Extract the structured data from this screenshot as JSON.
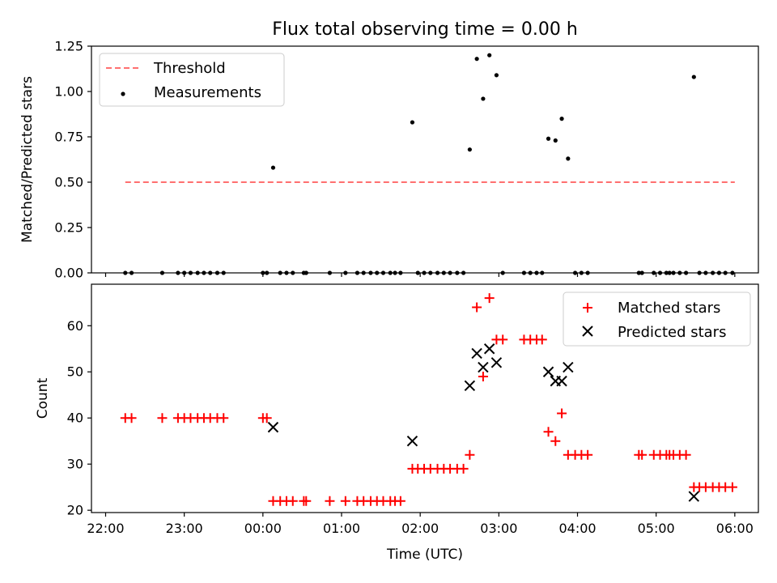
{
  "chart_data": {
    "title": "Flux total observing time = 0.00 h",
    "shared_x": {
      "label": "Time (UTC)",
      "unit": "hours since 22:00",
      "range": [
        -0.18,
        8.3
      ],
      "ticks": [
        0,
        1,
        2,
        3,
        4,
        5,
        6,
        7,
        8
      ],
      "tick_labels": [
        "22:00",
        "23:00",
        "00:00",
        "01:00",
        "02:00",
        "03:00",
        "04:00",
        "05:00",
        "06:00"
      ]
    },
    "panels": [
      {
        "type": "scatter",
        "ylabel": "Matched/Predicted stars",
        "ylim": [
          0,
          1.25
        ],
        "yticks": [
          0.0,
          0.25,
          0.5,
          0.75,
          1.0,
          1.25
        ],
        "ytick_labels": [
          "0.00",
          "0.25",
          "0.50",
          "0.75",
          "1.00",
          "1.25"
        ],
        "legend": {
          "position": "top-left",
          "entries": [
            "Threshold",
            "Measurements"
          ]
        },
        "threshold": {
          "name": "Threshold",
          "y": 0.5,
          "x_range": [
            0.25,
            8.0
          ],
          "color": "#ff7070",
          "style": "dashed"
        },
        "series": [
          {
            "name": "Measurements",
            "color": "#000000",
            "marker": "dot",
            "points": [
              [
                0.25,
                0
              ],
              [
                0.33,
                0
              ],
              [
                0.72,
                0
              ],
              [
                0.92,
                0
              ],
              [
                1.0,
                0
              ],
              [
                1.08,
                0
              ],
              [
                1.17,
                0
              ],
              [
                1.25,
                0
              ],
              [
                1.33,
                0
              ],
              [
                1.42,
                0
              ],
              [
                1.5,
                0
              ],
              [
                2.0,
                0
              ],
              [
                2.05,
                0
              ],
              [
                2.13,
                0.58
              ],
              [
                2.22,
                0
              ],
              [
                2.3,
                0
              ],
              [
                2.38,
                0
              ],
              [
                2.52,
                0
              ],
              [
                2.55,
                0
              ],
              [
                2.85,
                0
              ],
              [
                3.05,
                0
              ],
              [
                3.2,
                0
              ],
              [
                3.28,
                0
              ],
              [
                3.37,
                0
              ],
              [
                3.45,
                0
              ],
              [
                3.53,
                0
              ],
              [
                3.62,
                0
              ],
              [
                3.68,
                0
              ],
              [
                3.75,
                0
              ],
              [
                3.9,
                0.83
              ],
              [
                3.97,
                0
              ],
              [
                4.05,
                0
              ],
              [
                4.13,
                0
              ],
              [
                4.22,
                0
              ],
              [
                4.3,
                0
              ],
              [
                4.38,
                0
              ],
              [
                4.47,
                0
              ],
              [
                4.55,
                0
              ],
              [
                4.63,
                0.68
              ],
              [
                4.72,
                1.18
              ],
              [
                4.8,
                0.96
              ],
              [
                4.88,
                1.2
              ],
              [
                4.97,
                1.09
              ],
              [
                5.05,
                0
              ],
              [
                5.32,
                0
              ],
              [
                5.4,
                0
              ],
              [
                5.48,
                0
              ],
              [
                5.55,
                0
              ],
              [
                5.63,
                0.74
              ],
              [
                5.72,
                0.73
              ],
              [
                5.8,
                0.85
              ],
              [
                5.88,
                0.63
              ],
              [
                5.97,
                0
              ],
              [
                6.05,
                0
              ],
              [
                6.13,
                0
              ],
              [
                6.78,
                0
              ],
              [
                6.82,
                0
              ],
              [
                6.97,
                0
              ],
              [
                7.05,
                0
              ],
              [
                7.13,
                0
              ],
              [
                7.17,
                0
              ],
              [
                7.22,
                0
              ],
              [
                7.3,
                0
              ],
              [
                7.38,
                0
              ],
              [
                7.48,
                1.08
              ],
              [
                7.55,
                0
              ],
              [
                7.63,
                0
              ],
              [
                7.72,
                0
              ],
              [
                7.8,
                0
              ],
              [
                7.88,
                0
              ],
              [
                7.97,
                0
              ]
            ]
          }
        ]
      },
      {
        "type": "scatter",
        "ylabel": "Count",
        "ylim": [
          19.5,
          69
        ],
        "yticks": [
          20,
          30,
          40,
          50,
          60
        ],
        "ytick_labels": [
          "20",
          "30",
          "40",
          "50",
          "60"
        ],
        "legend": {
          "position": "top-right",
          "entries": [
            "Matched stars",
            "Predicted stars"
          ]
        },
        "series": [
          {
            "name": "Matched stars",
            "color": "#ff0000",
            "marker": "plus",
            "points": [
              [
                0.25,
                40
              ],
              [
                0.33,
                40
              ],
              [
                0.72,
                40
              ],
              [
                0.92,
                40
              ],
              [
                1.0,
                40
              ],
              [
                1.08,
                40
              ],
              [
                1.17,
                40
              ],
              [
                1.25,
                40
              ],
              [
                1.33,
                40
              ],
              [
                1.42,
                40
              ],
              [
                1.5,
                40
              ],
              [
                2.0,
                40
              ],
              [
                2.05,
                40
              ],
              [
                2.13,
                22
              ],
              [
                2.22,
                22
              ],
              [
                2.3,
                22
              ],
              [
                2.38,
                22
              ],
              [
                2.52,
                22
              ],
              [
                2.55,
                22
              ],
              [
                2.85,
                22
              ],
              [
                3.05,
                22
              ],
              [
                3.2,
                22
              ],
              [
                3.28,
                22
              ],
              [
                3.37,
                22
              ],
              [
                3.45,
                22
              ],
              [
                3.53,
                22
              ],
              [
                3.62,
                22
              ],
              [
                3.68,
                22
              ],
              [
                3.75,
                22
              ],
              [
                3.9,
                29
              ],
              [
                3.97,
                29
              ],
              [
                4.05,
                29
              ],
              [
                4.13,
                29
              ],
              [
                4.22,
                29
              ],
              [
                4.3,
                29
              ],
              [
                4.38,
                29
              ],
              [
                4.47,
                29
              ],
              [
                4.55,
                29
              ],
              [
                4.63,
                32
              ],
              [
                4.72,
                64
              ],
              [
                4.8,
                49
              ],
              [
                4.88,
                66
              ],
              [
                4.97,
                57
              ],
              [
                5.05,
                57
              ],
              [
                5.32,
                57
              ],
              [
                5.4,
                57
              ],
              [
                5.48,
                57
              ],
              [
                5.55,
                57
              ],
              [
                5.63,
                37
              ],
              [
                5.72,
                35
              ],
              [
                5.8,
                41
              ],
              [
                5.88,
                32
              ],
              [
                5.97,
                32
              ],
              [
                6.05,
                32
              ],
              [
                6.13,
                32
              ],
              [
                6.78,
                32
              ],
              [
                6.82,
                32
              ],
              [
                6.97,
                32
              ],
              [
                7.05,
                32
              ],
              [
                7.13,
                32
              ],
              [
                7.17,
                32
              ],
              [
                7.22,
                32
              ],
              [
                7.3,
                32
              ],
              [
                7.38,
                32
              ],
              [
                7.48,
                25
              ],
              [
                7.55,
                25
              ],
              [
                7.63,
                25
              ],
              [
                7.72,
                25
              ],
              [
                7.8,
                25
              ],
              [
                7.88,
                25
              ],
              [
                7.97,
                25
              ]
            ]
          },
          {
            "name": "Predicted stars",
            "color": "#000000",
            "marker": "x",
            "points": [
              [
                2.13,
                38
              ],
              [
                3.9,
                35
              ],
              [
                4.63,
                47
              ],
              [
                4.72,
                54
              ],
              [
                4.8,
                51
              ],
              [
                4.88,
                55
              ],
              [
                4.97,
                52
              ],
              [
                5.63,
                50
              ],
              [
                5.72,
                48
              ],
              [
                5.8,
                48
              ],
              [
                5.88,
                51
              ],
              [
                7.48,
                23
              ]
            ]
          }
        ]
      }
    ]
  }
}
